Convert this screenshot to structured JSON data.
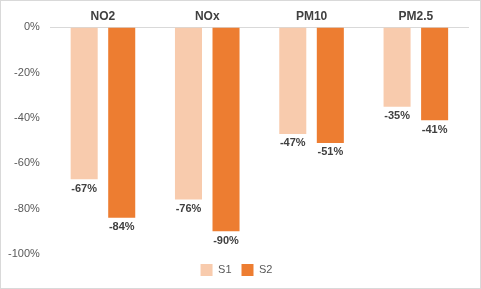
{
  "chart_data": {
    "type": "bar",
    "categories": [
      "NO2",
      "NOx",
      "PM10",
      "PM2.5"
    ],
    "series": [
      {
        "name": "S1",
        "color": "#f8cbad",
        "values": [
          -67,
          -76,
          -47,
          -35
        ],
        "value_labels": [
          "-67%",
          "-76%",
          "-47%",
          "-35%"
        ]
      },
      {
        "name": "S2",
        "color": "#ed7d31",
        "values": [
          -84,
          -90,
          -51,
          -41
        ],
        "value_labels": [
          "-84%",
          "-90%",
          "-51%",
          "-41%"
        ]
      }
    ],
    "ylim": [
      -100,
      0
    ],
    "yticks": [
      {
        "value": -100,
        "label": "-100%"
      },
      {
        "value": -80,
        "label": "-80%"
      },
      {
        "value": -60,
        "label": "-60%"
      },
      {
        "value": -40,
        "label": "-40%"
      },
      {
        "value": -20,
        "label": "-20%"
      },
      {
        "value": 0,
        "label": "0%"
      }
    ],
    "grid": false,
    "legend": "bottom",
    "data_labels": true
  }
}
